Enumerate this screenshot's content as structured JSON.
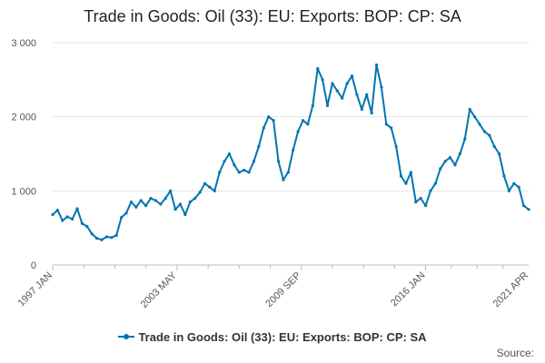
{
  "title": "Trade in Goods: Oil (33): EU: Exports: BOP: CP: SA",
  "source_label": "Source:",
  "chart_data": {
    "type": "line",
    "title": "Trade in Goods: Oil (33): EU: Exports: BOP: CP: SA",
    "xlabel": "",
    "ylabel": "",
    "x_tick_labels": [
      "1997 JAN",
      "2003 MAY",
      "2009 SEP",
      "2016 JAN",
      "2021 APR"
    ],
    "y_tick_labels": [
      "0",
      "1 000",
      "2 000",
      "3 000"
    ],
    "ylim": [
      0,
      3000
    ],
    "grid": true,
    "legend_position": "bottom",
    "color": "#0075b0",
    "series": [
      {
        "name": "Trade in Goods: Oil (33): EU: Exports: BOP: CP: SA",
        "points": [
          [
            "1997-01",
            680
          ],
          [
            "1997-04",
            740
          ],
          [
            "1997-07",
            600
          ],
          [
            "1997-10",
            650
          ],
          [
            "1998-01",
            620
          ],
          [
            "1998-04",
            760
          ],
          [
            "1998-07",
            560
          ],
          [
            "1998-10",
            520
          ],
          [
            "1999-01",
            420
          ],
          [
            "1999-04",
            360
          ],
          [
            "1999-07",
            340
          ],
          [
            "1999-10",
            380
          ],
          [
            "2000-01",
            370
          ],
          [
            "2000-04",
            400
          ],
          [
            "2000-07",
            640
          ],
          [
            "2000-10",
            700
          ],
          [
            "2001-01",
            850
          ],
          [
            "2001-04",
            780
          ],
          [
            "2001-07",
            870
          ],
          [
            "2001-10",
            800
          ],
          [
            "2002-01",
            900
          ],
          [
            "2002-04",
            870
          ],
          [
            "2002-07",
            820
          ],
          [
            "2002-10",
            900
          ],
          [
            "2003-01",
            1000
          ],
          [
            "2003-04",
            750
          ],
          [
            "2003-07",
            820
          ],
          [
            "2003-10",
            680
          ],
          [
            "2004-01",
            850
          ],
          [
            "2004-04",
            900
          ],
          [
            "2004-07",
            980
          ],
          [
            "2004-10",
            1100
          ],
          [
            "2005-01",
            1050
          ],
          [
            "2005-04",
            1000
          ],
          [
            "2005-07",
            1250
          ],
          [
            "2005-10",
            1400
          ],
          [
            "2006-01",
            1500
          ],
          [
            "2006-04",
            1350
          ],
          [
            "2006-07",
            1250
          ],
          [
            "2006-10",
            1280
          ],
          [
            "2007-01",
            1250
          ],
          [
            "2007-04",
            1400
          ],
          [
            "2007-07",
            1600
          ],
          [
            "2007-10",
            1850
          ],
          [
            "2008-01",
            2000
          ],
          [
            "2008-04",
            1950
          ],
          [
            "2008-07",
            1400
          ],
          [
            "2008-10",
            1150
          ],
          [
            "2009-01",
            1250
          ],
          [
            "2009-04",
            1550
          ],
          [
            "2009-07",
            1800
          ],
          [
            "2009-10",
            1950
          ],
          [
            "2010-01",
            1900
          ],
          [
            "2010-04",
            2150
          ],
          [
            "2010-07",
            2650
          ],
          [
            "2010-10",
            2500
          ],
          [
            "2011-01",
            2150
          ],
          [
            "2011-04",
            2450
          ],
          [
            "2011-07",
            2350
          ],
          [
            "2011-10",
            2250
          ],
          [
            "2012-01",
            2450
          ],
          [
            "2012-04",
            2550
          ],
          [
            "2012-07",
            2300
          ],
          [
            "2012-10",
            2100
          ],
          [
            "2013-01",
            2300
          ],
          [
            "2013-04",
            2050
          ],
          [
            "2013-07",
            2700
          ],
          [
            "2013-10",
            2400
          ],
          [
            "2014-01",
            1900
          ],
          [
            "2014-04",
            1850
          ],
          [
            "2014-07",
            1600
          ],
          [
            "2014-10",
            1200
          ],
          [
            "2015-01",
            1100
          ],
          [
            "2015-04",
            1250
          ],
          [
            "2015-07",
            850
          ],
          [
            "2015-10",
            900
          ],
          [
            "2016-01",
            800
          ],
          [
            "2016-04",
            1000
          ],
          [
            "2016-07",
            1100
          ],
          [
            "2016-10",
            1300
          ],
          [
            "2017-01",
            1400
          ],
          [
            "2017-04",
            1450
          ],
          [
            "2017-07",
            1350
          ],
          [
            "2017-10",
            1500
          ],
          [
            "2018-01",
            1700
          ],
          [
            "2018-04",
            2100
          ],
          [
            "2018-07",
            2000
          ],
          [
            "2018-10",
            1900
          ],
          [
            "2019-01",
            1800
          ],
          [
            "2019-04",
            1750
          ],
          [
            "2019-07",
            1600
          ],
          [
            "2019-10",
            1500
          ],
          [
            "2020-01",
            1200
          ],
          [
            "2020-04",
            1000
          ],
          [
            "2020-07",
            1100
          ],
          [
            "2020-10",
            1050
          ],
          [
            "2021-01",
            800
          ],
          [
            "2021-04",
            750
          ]
        ]
      }
    ]
  }
}
